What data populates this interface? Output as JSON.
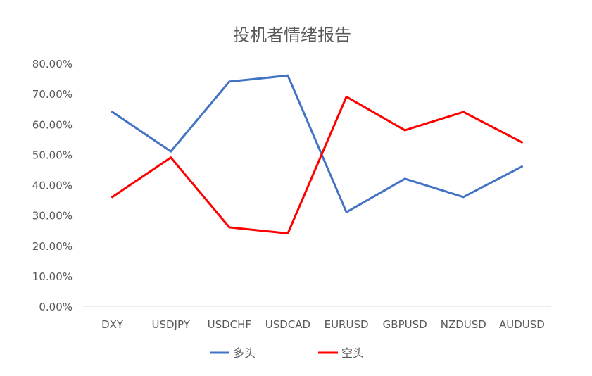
{
  "chart_data": {
    "type": "line",
    "title": "投机者情绪报告",
    "xlabel": "",
    "ylabel": "",
    "categories": [
      "DXY",
      "USDJPY",
      "USDCHF",
      "USDCAD",
      "EURUSD",
      "GBPUSD",
      "NZDUSD",
      "AUDUSD"
    ],
    "series": [
      {
        "name": "多头",
        "color": "#4472C4",
        "values": [
          64,
          51,
          74,
          76,
          31,
          42,
          36,
          46
        ]
      },
      {
        "name": "空头",
        "color": "#FF0000",
        "values": [
          36,
          49,
          26,
          24,
          69,
          58,
          64,
          54
        ]
      }
    ],
    "ylim": [
      0,
      80
    ],
    "yticks": [
      "0.00%",
      "10.00%",
      "20.00%",
      "30.00%",
      "40.00%",
      "50.00%",
      "60.00%",
      "70.00%",
      "80.00%"
    ],
    "grid": false,
    "legend_position": "bottom"
  }
}
